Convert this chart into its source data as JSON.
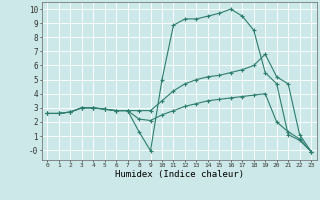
{
  "xlabel": "Humidex (Indice chaleur)",
  "bg_color": "#cce8e8",
  "grid_color": "#ffffff",
  "line_color": "#2e7d6e",
  "xlim": [
    -0.5,
    23.5
  ],
  "ylim": [
    -0.7,
    10.5
  ],
  "xticks": [
    0,
    1,
    2,
    3,
    4,
    5,
    6,
    7,
    8,
    9,
    10,
    11,
    12,
    13,
    14,
    15,
    16,
    17,
    18,
    19,
    20,
    21,
    22,
    23
  ],
  "yticks": [
    0,
    1,
    2,
    3,
    4,
    5,
    6,
    7,
    8,
    9,
    10
  ],
  "ytick_labels": [
    "-0",
    "1",
    "2",
    "3",
    "4",
    "5",
    "6",
    "7",
    "8",
    "9",
    "10"
  ],
  "curve1_x": [
    0,
    1,
    2,
    3,
    4,
    5,
    6,
    7,
    8,
    9,
    10,
    11,
    12,
    13,
    14,
    15,
    16,
    17,
    18,
    19,
    20,
    21,
    22,
    23
  ],
  "curve1_y": [
    2.6,
    2.6,
    2.7,
    3.0,
    3.0,
    2.9,
    2.8,
    2.8,
    1.3,
    -0.05,
    5.0,
    8.85,
    9.3,
    9.3,
    9.5,
    9.7,
    10.0,
    9.5,
    8.5,
    5.5,
    4.7,
    1.1,
    0.7,
    -0.1
  ],
  "curve2_x": [
    0,
    1,
    2,
    3,
    4,
    5,
    6,
    7,
    8,
    9,
    10,
    11,
    12,
    13,
    14,
    15,
    16,
    17,
    18,
    19,
    20,
    21,
    22,
    23
  ],
  "curve2_y": [
    2.6,
    2.6,
    2.7,
    3.0,
    3.0,
    2.9,
    2.8,
    2.8,
    2.8,
    2.8,
    3.5,
    4.2,
    4.7,
    5.0,
    5.2,
    5.3,
    5.5,
    5.7,
    6.0,
    6.8,
    5.2,
    4.7,
    1.1,
    -0.1
  ],
  "curve3_x": [
    0,
    1,
    2,
    3,
    4,
    5,
    6,
    7,
    8,
    9,
    10,
    11,
    12,
    13,
    14,
    15,
    16,
    17,
    18,
    19,
    20,
    21,
    22,
    23
  ],
  "curve3_y": [
    2.6,
    2.6,
    2.7,
    3.0,
    3.0,
    2.9,
    2.8,
    2.8,
    2.2,
    2.1,
    2.5,
    2.8,
    3.1,
    3.3,
    3.5,
    3.6,
    3.7,
    3.8,
    3.9,
    4.0,
    2.0,
    1.3,
    0.8,
    -0.1
  ]
}
